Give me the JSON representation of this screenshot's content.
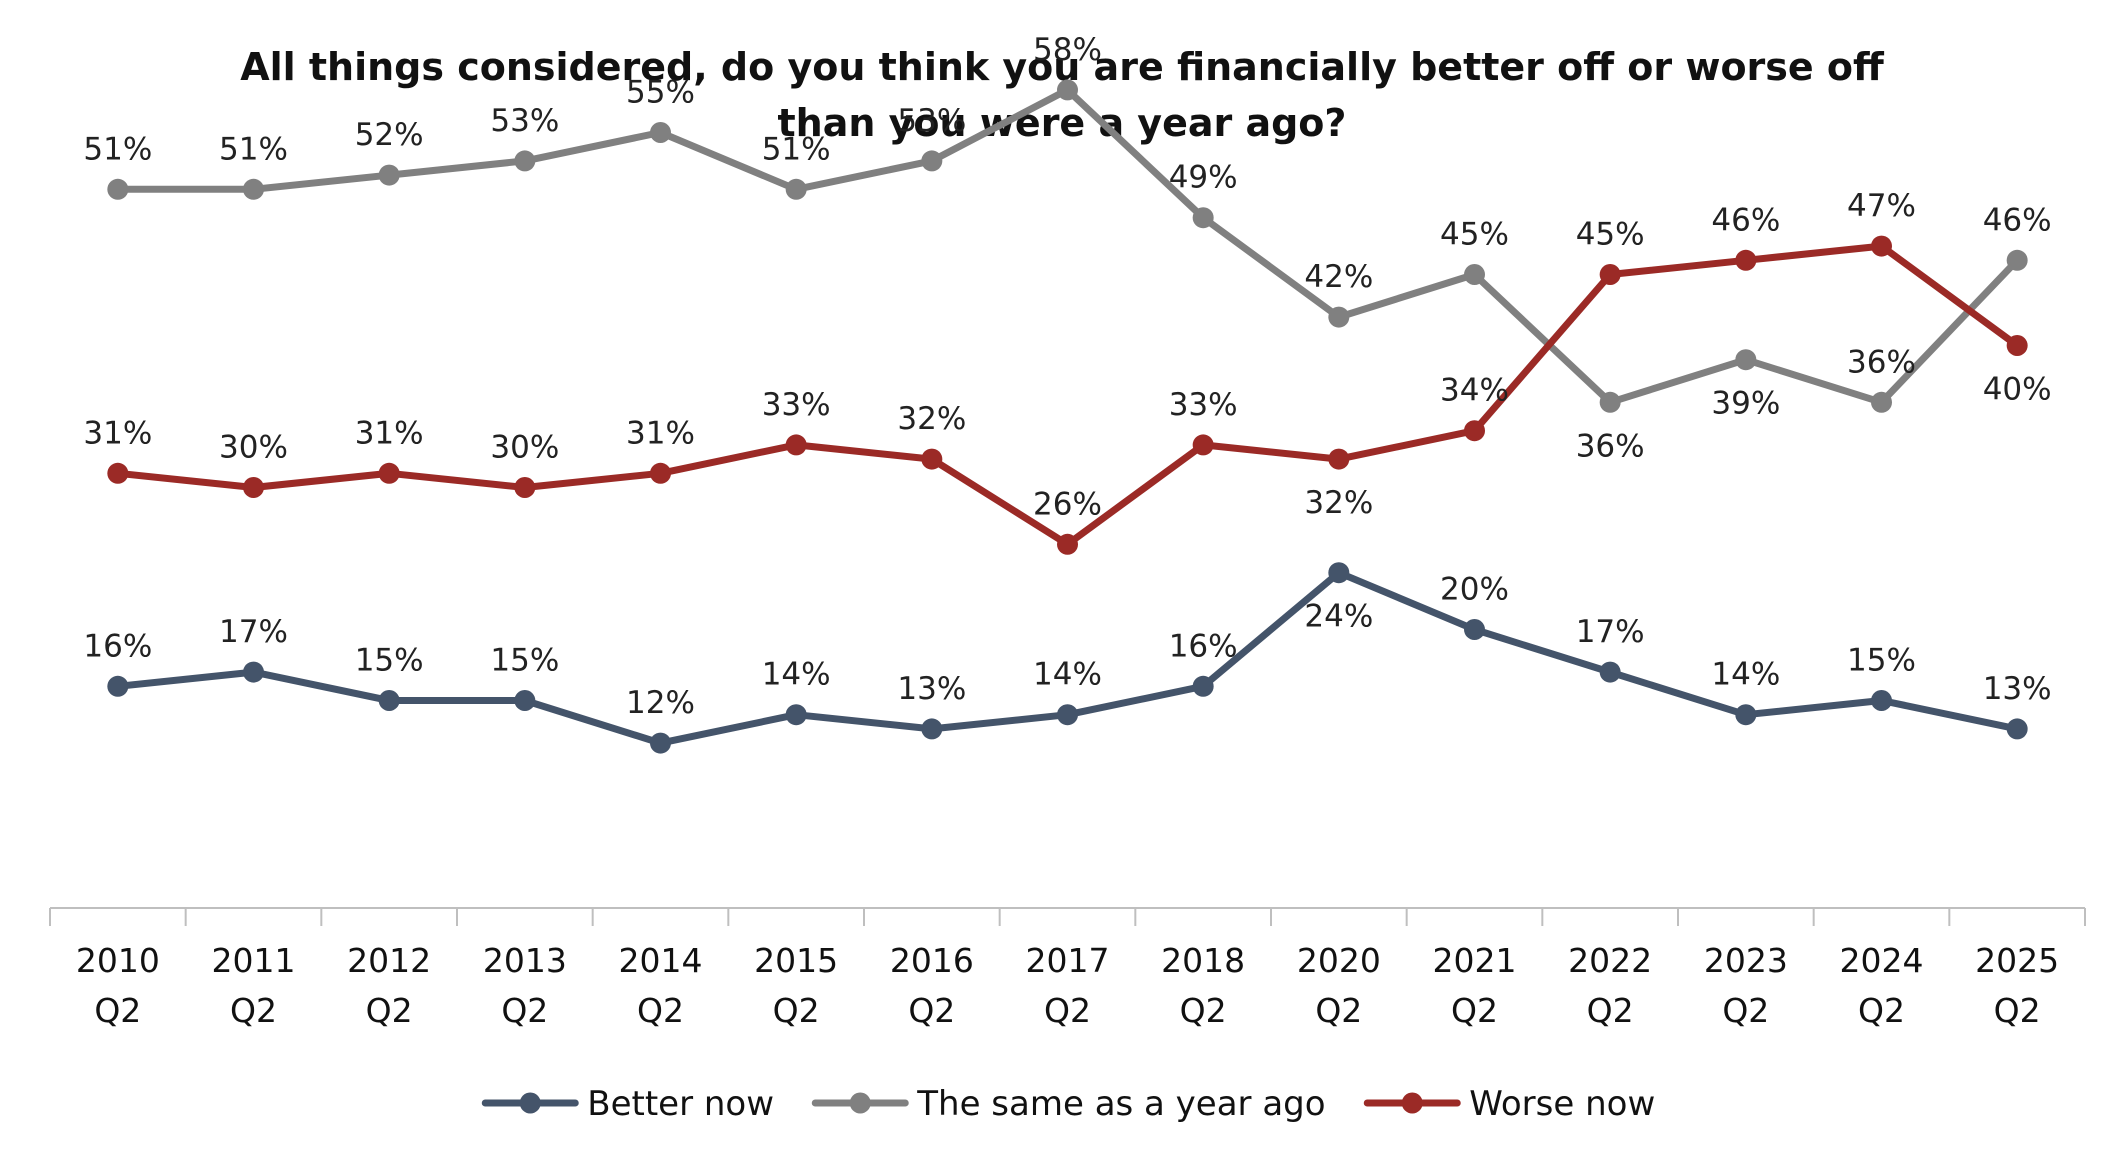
{
  "chart_data": {
    "type": "line",
    "title_lines": [
      "All things considered, do you think you are financially better off or worse off",
      "than you were a year ago?"
    ],
    "categories": [
      [
        "2010",
        "Q2"
      ],
      [
        "2011",
        "Q2"
      ],
      [
        "2012",
        "Q2"
      ],
      [
        "2013",
        "Q2"
      ],
      [
        "2014",
        "Q2"
      ],
      [
        "2015",
        "Q2"
      ],
      [
        "2016",
        "Q2"
      ],
      [
        "2017",
        "Q2"
      ],
      [
        "2018",
        "Q2"
      ],
      [
        "2020",
        "Q2"
      ],
      [
        "2021",
        "Q2"
      ],
      [
        "2022",
        "Q2"
      ],
      [
        "2023",
        "Q2"
      ],
      [
        "2024",
        "Q2"
      ],
      [
        "2025",
        "Q2"
      ]
    ],
    "value_suffix": "%",
    "ylim": [
      0,
      80
    ],
    "grid": false,
    "legend_position": "bottom",
    "series": [
      {
        "name": "Better now",
        "color": "#44546a",
        "values": [
          16,
          17,
          15,
          15,
          12,
          14,
          13,
          14,
          16,
          24,
          20,
          17,
          14,
          15,
          13
        ]
      },
      {
        "name": "The same as a year ago",
        "color": "#808080",
        "values": [
          51,
          51,
          52,
          53,
          55,
          51,
          53,
          58,
          49,
          42,
          45,
          36,
          39,
          36,
          46
        ]
      },
      {
        "name": "Worse now",
        "color": "#9b2a26",
        "values": [
          31,
          30,
          31,
          30,
          31,
          33,
          32,
          26,
          33,
          32,
          34,
          45,
          46,
          47,
          40
        ]
      }
    ]
  }
}
